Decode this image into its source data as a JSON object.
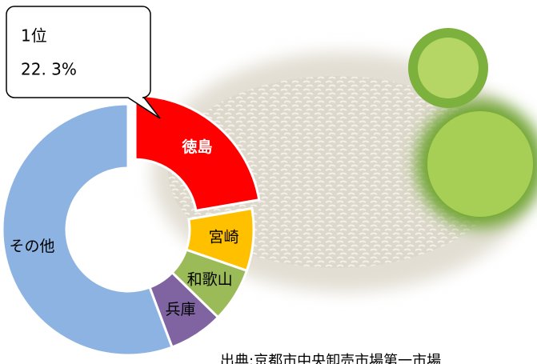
{
  "chart_data": {
    "type": "donut",
    "categories": [
      "徳島",
      "宮崎",
      "和歌山",
      "兵庫",
      "その他"
    ],
    "values": [
      22.3,
      8,
      7,
      7,
      55.7
    ],
    "value_labels": [
      "22. 3%",
      null,
      null,
      null,
      null
    ],
    "colors": [
      "#ff0000",
      "#ffc000",
      "#9bbb59",
      "#8064a2",
      "#8db3e2"
    ],
    "rank_label": "1位",
    "source": "出典:京都市中央卸売市場第一市場"
  }
}
